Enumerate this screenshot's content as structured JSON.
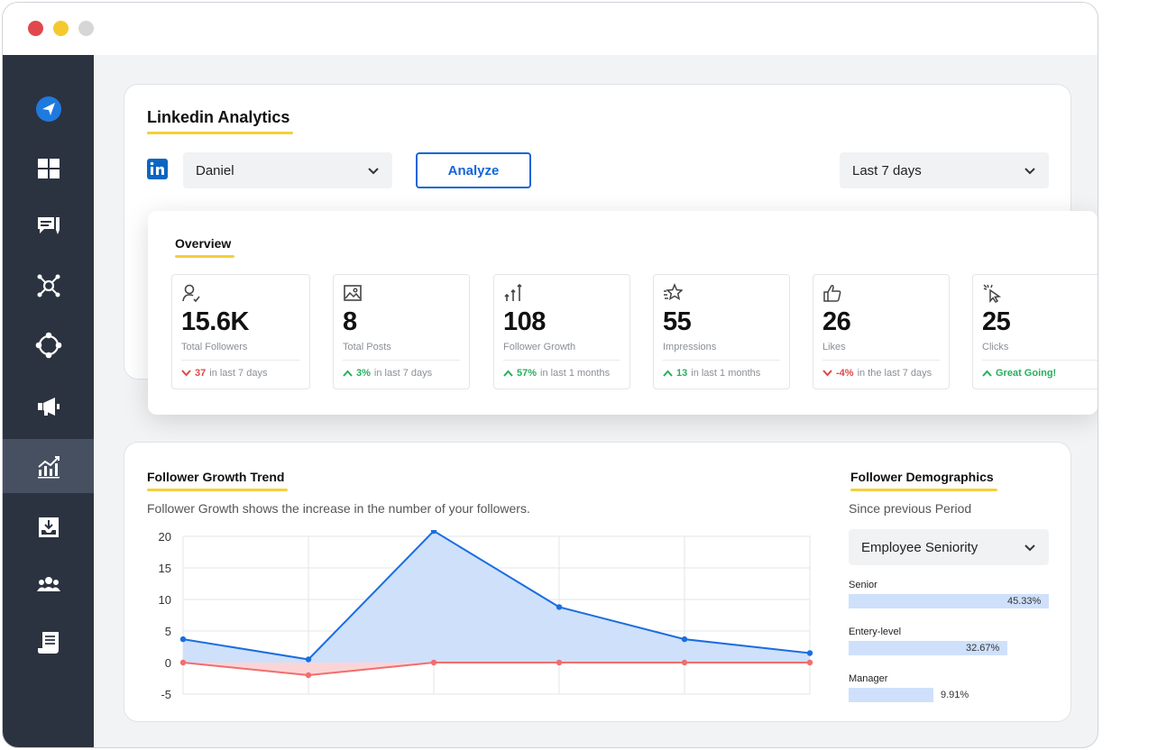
{
  "window": {
    "controls": [
      "close",
      "minimize",
      "maximize"
    ]
  },
  "sidebar": {
    "items": [
      {
        "icon": "send-icon",
        "active": false
      },
      {
        "icon": "dashboard-icon",
        "active": false
      },
      {
        "icon": "comments-icon",
        "active": false
      },
      {
        "icon": "network-icon",
        "active": false
      },
      {
        "icon": "integration-icon",
        "active": false
      },
      {
        "icon": "megaphone-icon",
        "active": false
      },
      {
        "icon": "analytics-icon",
        "active": true
      },
      {
        "icon": "inbox-download-icon",
        "active": false
      },
      {
        "icon": "team-icon",
        "active": false
      },
      {
        "icon": "report-icon",
        "active": false
      }
    ]
  },
  "analytics": {
    "title": "Linkedin Analytics",
    "account_select": "Daniel",
    "analyze_label": "Analyze",
    "period_select": "Last 7 days",
    "brand_color": "#0a66c2"
  },
  "overview": {
    "title": "Overview",
    "stats": [
      {
        "icon": "user-check-icon",
        "value": "15.6K",
        "label": "Total Followers",
        "direction": "down",
        "change": "37",
        "suffix": "in last 7 days"
      },
      {
        "icon": "image-icon",
        "value": "8",
        "label": "Total Posts",
        "direction": "up",
        "change": "3%",
        "suffix": "in last 7 days"
      },
      {
        "icon": "growth-arrows-icon",
        "value": "108",
        "label": "Follower Growth",
        "direction": "up",
        "change": "57%",
        "suffix": "in last 1 months"
      },
      {
        "icon": "star-icon",
        "value": "55",
        "label": "Impressions",
        "direction": "up",
        "change": "13",
        "suffix": "in last 1 months"
      },
      {
        "icon": "thumbs-up-icon",
        "value": "26",
        "label": "Likes",
        "direction": "down",
        "change": "-4%",
        "suffix": "in the last 7 days"
      },
      {
        "icon": "cursor-click-icon",
        "value": "25",
        "label": "Clicks",
        "direction": "up",
        "change": "Great Going!",
        "suffix": ""
      }
    ]
  },
  "trend": {
    "title": "Follower Growth Trend",
    "description": "Follower Growth shows the increase in the number of your followers."
  },
  "chart_data": {
    "type": "area",
    "x": [
      0,
      1,
      2,
      3,
      4,
      5
    ],
    "ylim": [
      -5,
      20
    ],
    "yticks": [
      20,
      15,
      10,
      5,
      0,
      -5
    ],
    "grid": true,
    "series": [
      {
        "values": [
          3.7,
          0.5,
          21.5,
          8.8,
          3.7,
          1.5
        ],
        "color": "#1a6ee0",
        "fill": "#cfe0fb"
      },
      {
        "values": [
          0,
          -2,
          0,
          0,
          0,
          0
        ],
        "color": "#f26d6d",
        "fill": "#fbd5d6"
      }
    ]
  },
  "demographics": {
    "title": "Follower Demographics",
    "subtitle": "Since previous Period",
    "select": "Employee Seniority",
    "items": [
      {
        "label": "Senior",
        "value": "45.33%",
        "fraction": 0.4533
      },
      {
        "label": "Entery-level",
        "value": "32.67%",
        "fraction": 0.3267
      },
      {
        "label": "Manager",
        "value": "9.91%",
        "fraction": 0.0991
      }
    ]
  }
}
